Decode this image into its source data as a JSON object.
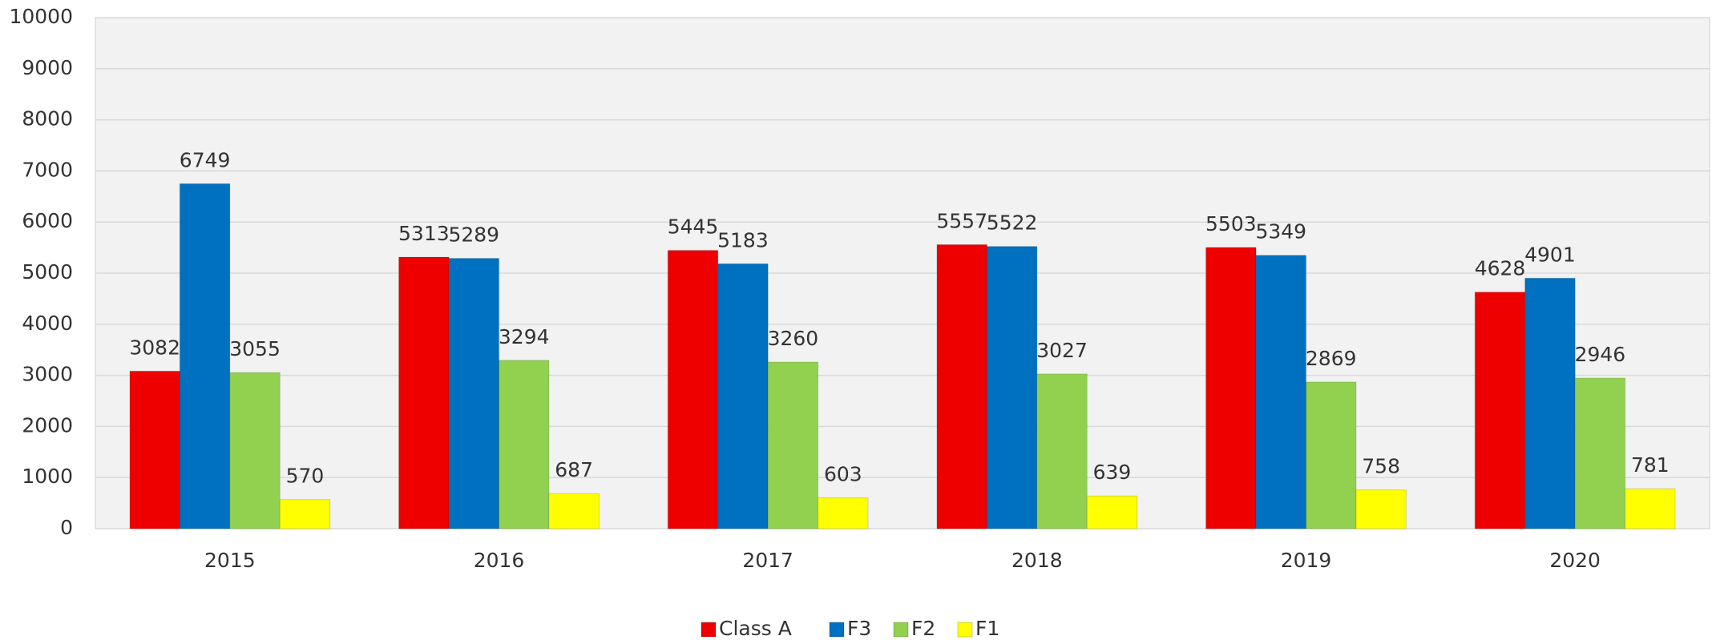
{
  "chart_data": {
    "type": "bar",
    "categories": [
      "2015",
      "2016",
      "2017",
      "2018",
      "2019",
      "2020"
    ],
    "series": [
      {
        "name": "Class A",
        "color": "#ee0000",
        "values": [
          3082,
          5313,
          5445,
          5557,
          5503,
          4628
        ]
      },
      {
        "name": "F3",
        "color": "#0070c0",
        "values": [
          6749,
          5289,
          5183,
          5522,
          5349,
          4901
        ]
      },
      {
        "name": "F2",
        "color": "#92d050",
        "values": [
          3055,
          3294,
          3260,
          3027,
          2869,
          2946
        ]
      },
      {
        "name": "F1",
        "color": "#ffff00",
        "values": [
          570,
          687,
          603,
          639,
          758,
          781
        ]
      }
    ],
    "ylim": [
      0,
      10000
    ],
    "yticks": [
      0,
      1000,
      2000,
      3000,
      4000,
      5000,
      6000,
      7000,
      8000,
      9000,
      10000
    ],
    "grid": true,
    "legend": "bottom"
  }
}
